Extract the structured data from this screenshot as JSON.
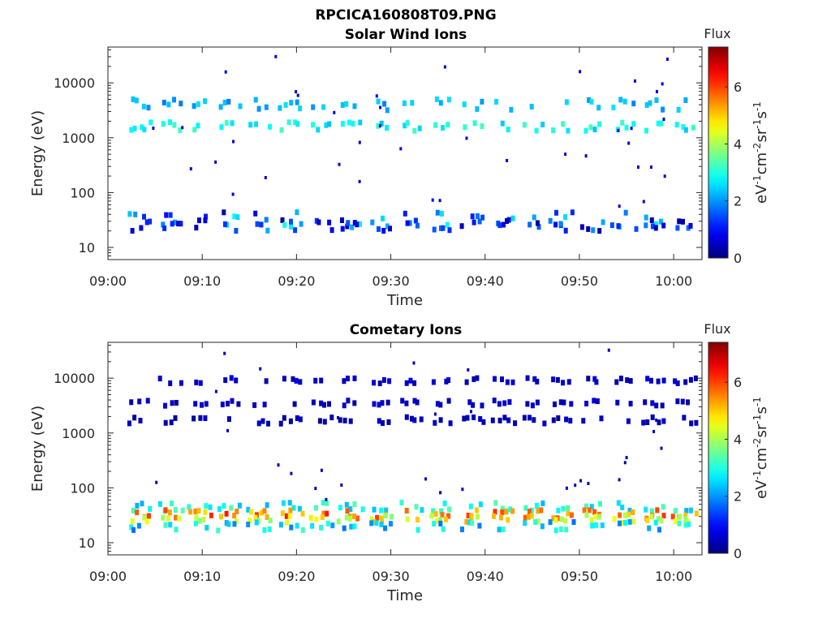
{
  "figure_title": "RPCICA160808T09.PNG",
  "colorbar": {
    "title": "Flux",
    "ticks": [
      "0",
      "2",
      "4",
      "6"
    ],
    "range": [
      0,
      7.4
    ],
    "label_parts": [
      "eV",
      "-1",
      "cm",
      "-2",
      "sr",
      "-1",
      "s",
      "-1"
    ]
  },
  "chart_data": [
    {
      "type": "heatmap",
      "title": "Solar Wind Ions",
      "xlabel": "Time",
      "ylabel": "Energy (eV)",
      "x_ticks": [
        "09:00",
        "09:10",
        "09:20",
        "09:30",
        "09:40",
        "09:50",
        "10:00"
      ],
      "xlim_minutes": [
        0,
        63
      ],
      "y_scale": "log",
      "y_ticks": [
        "10",
        "100",
        "1000",
        "10000"
      ],
      "ylim": [
        6,
        45000
      ],
      "colorbar_label": "Flux",
      "columns_minutes": [
        3.5,
        6.8,
        9.8,
        13.0,
        16.2,
        19.5,
        22.8,
        25.8,
        29.0,
        32.2,
        35.5,
        38.8,
        42.0,
        45.2,
        48.2,
        51.5,
        54.8,
        58.0,
        61.2
      ],
      "bands": [
        {
          "energy_eV": 4000,
          "flux": 2.2,
          "variation": 0.4,
          "spread": 0.1
        },
        {
          "energy_eV": 1600,
          "flux": 2.8,
          "variation": 0.5,
          "spread": 0.08
        },
        {
          "energy_eV": 32,
          "flux": 1.5,
          "variation": 1.3,
          "spread": 0.14
        },
        {
          "energy_eV": 25,
          "flux": 1.2,
          "variation": 1.0,
          "spread": 0.1
        }
      ],
      "sparse_flux": 0.6,
      "sparse_count": 40
    },
    {
      "type": "heatmap",
      "title": "Cometary Ions",
      "xlabel": "Time",
      "ylabel": "Energy (eV)",
      "x_ticks": [
        "09:00",
        "09:10",
        "09:20",
        "09:30",
        "09:40",
        "09:50",
        "10:00"
      ],
      "xlim_minutes": [
        0,
        63
      ],
      "y_scale": "log",
      "y_ticks": [
        "10",
        "100",
        "1000",
        "10000"
      ],
      "ylim": [
        6,
        45000
      ],
      "colorbar_label": "Flux",
      "columns_minutes": [
        3.5,
        6.8,
        9.8,
        13.0,
        16.2,
        19.5,
        22.8,
        25.8,
        29.0,
        32.2,
        35.5,
        38.8,
        42.0,
        45.2,
        48.2,
        51.5,
        54.8,
        58.0,
        61.2
      ],
      "bands": [
        {
          "energy_eV": 9000,
          "flux": 0.5,
          "variation": 0.2,
          "spread": 0.05
        },
        {
          "energy_eV": 3500,
          "flux": 0.5,
          "variation": 0.2,
          "spread": 0.05
        },
        {
          "energy_eV": 1700,
          "flux": 0.4,
          "variation": 0.2,
          "spread": 0.06
        },
        {
          "energy_eV": 45,
          "flux": 2.8,
          "variation": 0.6,
          "spread": 0.08
        },
        {
          "energy_eV": 33,
          "flux": 5.6,
          "variation": 0.8,
          "spread": 0.08
        },
        {
          "energy_eV": 27,
          "flux": 4.5,
          "variation": 0.8,
          "spread": 0.07
        },
        {
          "energy_eV": 20,
          "flux": 2.5,
          "variation": 0.8,
          "spread": 0.08
        }
      ],
      "sparse_flux": 0.4,
      "sparse_count": 30
    }
  ]
}
